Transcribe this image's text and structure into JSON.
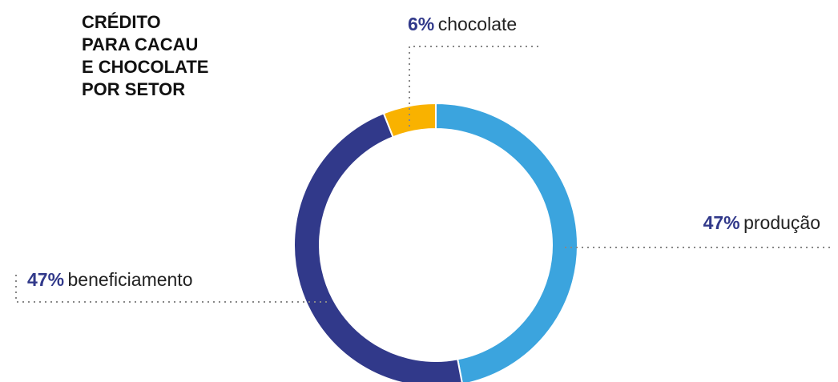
{
  "chart_data": {
    "type": "pie",
    "variant": "donut",
    "title_lines": [
      "CRÉDITO",
      "PARA CACAU",
      "E CHOCOLATE",
      "POR SETOR"
    ],
    "slices": [
      {
        "label": "produção",
        "value": 47,
        "value_label": "47%",
        "color": "#3BA4DE"
      },
      {
        "label": "beneficiamento",
        "value": 47,
        "value_label": "47%",
        "color": "#31398A"
      },
      {
        "label": "chocolate",
        "value": 6,
        "value_label": "6%",
        "color": "#F9B200"
      }
    ],
    "label_value_color": "#31398A",
    "leader_style": "dotted"
  }
}
